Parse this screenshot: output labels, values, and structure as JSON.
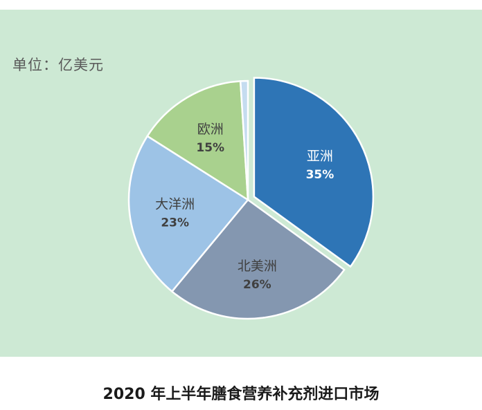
{
  "unit_label": "单位：亿美元",
  "caption": "2020 年上半年膳食营养补充剂进口市场",
  "chart_data": {
    "type": "pie",
    "title": "",
    "labels": [
      "亚洲",
      "北美洲",
      "大洋洲",
      "欧洲",
      ""
    ],
    "values": [
      35,
      26,
      23,
      15,
      1
    ],
    "display_labels": [
      "35%",
      "26%",
      "23%",
      "15%",
      ""
    ],
    "colors": [
      "#2e75b6",
      "#8497b0",
      "#9dc3e6",
      "#a9d18e",
      "#c5dcf0"
    ],
    "label_colors": [
      "#ffffff",
      "#404040",
      "#404040",
      "#404040",
      ""
    ],
    "exploded": [
      true,
      false,
      false,
      false,
      false
    ],
    "start_angle_deg": 0,
    "direction": "clockwise"
  }
}
